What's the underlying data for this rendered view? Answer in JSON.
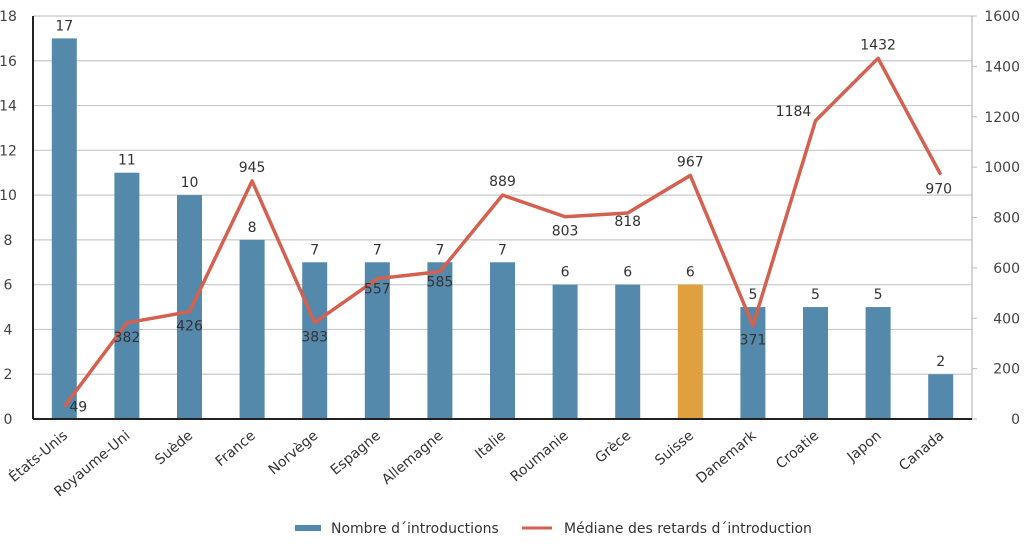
{
  "chart_data": {
    "type": "bar+line",
    "title": "",
    "categories": [
      "États-Unis",
      "Royaume-Uni",
      "Suède",
      "France",
      "Norvège",
      "Espagne",
      "Allemagne",
      "Italie",
      "Roumanie",
      "Grèce",
      "Suisse",
      "Danemark",
      "Croatie",
      "Japon",
      "Canada"
    ],
    "series": [
      {
        "name": "Nombre d´introductions",
        "type": "bar",
        "axis": "left",
        "color": "#5489ab",
        "values": [
          17,
          11,
          10,
          8,
          7,
          7,
          7,
          7,
          6,
          6,
          6,
          5,
          5,
          5,
          2
        ]
      },
      {
        "name": "Médiane des retards d´introduction",
        "type": "line",
        "axis": "right",
        "color": "#d4614f",
        "values": [
          49,
          382,
          426,
          945,
          383,
          557,
          585,
          889,
          803,
          818,
          967,
          371,
          1184,
          1432,
          970
        ]
      }
    ],
    "highlight": {
      "category": "Suisse",
      "color": "#e0a040"
    },
    "left_axis": {
      "ylim": [
        0,
        18
      ],
      "ticks": [
        0,
        2,
        4,
        6,
        8,
        10,
        12,
        14,
        16,
        18
      ]
    },
    "right_axis": {
      "ylim": [
        0,
        1600
      ],
      "ticks": [
        0,
        200,
        400,
        600,
        800,
        1000,
        1200,
        1400,
        1600
      ]
    },
    "grid": true,
    "legend": {
      "placement": "bottom-center",
      "entries": [
        "Nombre d´introductions",
        "Médiane des retards d´introduction"
      ]
    }
  }
}
